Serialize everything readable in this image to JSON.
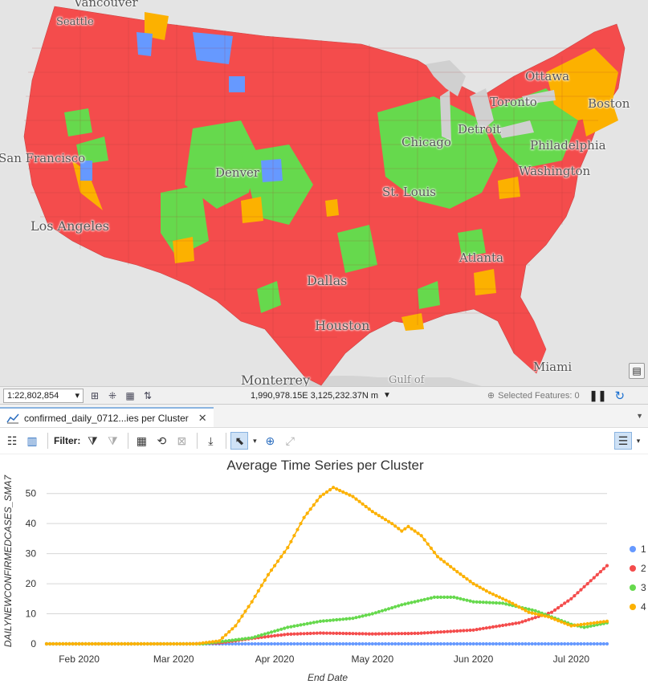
{
  "map": {
    "labels": {
      "vancouver": "Vancouver",
      "seattle": "Seattle",
      "ottawa": "Ottawa",
      "toronto": "Toronto",
      "boston": "Boston",
      "detroit": "Detroit",
      "chicago": "Chicago",
      "philadelphia": "Philadelphia",
      "washington": "Washington",
      "san_francisco": "San Francisco",
      "denver": "Denver",
      "st_louis": "St. Louis",
      "los_angeles": "Los Angeles",
      "atlanta": "Atlanta",
      "dallas": "Dallas",
      "houston": "Houston",
      "monterrey": "Monterrey",
      "gulf": "Gulf of",
      "miami": "Miami"
    },
    "colors": {
      "cluster1": "#6699ff",
      "cluster2": "#f44c4c",
      "cluster3": "#66d94d",
      "cluster4": "#fcb100",
      "basemap": "#e4e4e4"
    }
  },
  "statusbar": {
    "scale": "1:22,802,854",
    "coordinates": "1,990,978.15E 3,125,232.37N m",
    "selected_features": "Selected Features: 0"
  },
  "tab": {
    "title": "confirmed_daily_0712...ies per Cluster",
    "close": "✕"
  },
  "toolbar": {
    "filter_label": "Filter:",
    "icons": [
      "chart-properties-icon",
      "filter-extent-icon",
      "filter-selection-icon",
      "table-icon",
      "sync-icon",
      "clear-icon",
      "export-icon",
      "select-icon",
      "zoom-icon",
      "full-extent-icon",
      "legend-icon"
    ]
  },
  "chart_data": {
    "type": "line",
    "title": "Average Time Series per Cluster",
    "xlabel": "End Date",
    "ylabel": "DAILYNEWCONFIRMEDCASES_SMA7",
    "ylim": [
      0,
      55
    ],
    "yticks": [
      0,
      10,
      20,
      30,
      40,
      50
    ],
    "xticks": [
      "Feb 2020",
      "Mar 2020",
      "Apr 2020",
      "May 2020",
      "Jun 2020",
      "Jul 2020"
    ],
    "x_range": [
      "2020-01-22",
      "2020-07-12"
    ],
    "grid": true,
    "legend": "right",
    "series": [
      {
        "name": "1",
        "color": "#6699ff",
        "points": [
          [
            "2020-01-22",
            0
          ],
          [
            "2020-07-12",
            0
          ]
        ]
      },
      {
        "name": "2",
        "color": "#f44c4c",
        "points": [
          [
            "2020-01-22",
            0
          ],
          [
            "2020-03-05",
            0
          ],
          [
            "2020-03-15",
            0.3
          ],
          [
            "2020-03-25",
            1.8
          ],
          [
            "2020-04-05",
            3.2
          ],
          [
            "2020-04-15",
            3.6
          ],
          [
            "2020-05-01",
            3.3
          ],
          [
            "2020-05-15",
            3.5
          ],
          [
            "2020-06-01",
            4.6
          ],
          [
            "2020-06-15",
            7
          ],
          [
            "2020-06-25",
            10.5
          ],
          [
            "2020-07-01",
            15
          ],
          [
            "2020-07-06",
            20
          ],
          [
            "2020-07-12",
            26
          ]
        ]
      },
      {
        "name": "3",
        "color": "#66d94d",
        "points": [
          [
            "2020-01-22",
            0
          ],
          [
            "2020-03-10",
            0
          ],
          [
            "2020-03-25",
            2
          ],
          [
            "2020-04-05",
            5.5
          ],
          [
            "2020-04-15",
            7.5
          ],
          [
            "2020-04-25",
            8.5
          ],
          [
            "2020-05-01",
            10
          ],
          [
            "2020-05-10",
            13
          ],
          [
            "2020-05-20",
            15.5
          ],
          [
            "2020-05-26",
            15.5
          ],
          [
            "2020-06-01",
            14
          ],
          [
            "2020-06-10",
            13.5
          ],
          [
            "2020-06-20",
            11
          ],
          [
            "2020-07-01",
            6.5
          ],
          [
            "2020-07-05",
            5.5
          ],
          [
            "2020-07-12",
            7
          ]
        ]
      },
      {
        "name": "4",
        "color": "#fcb100",
        "points": [
          [
            "2020-01-22",
            0
          ],
          [
            "2020-03-08",
            0
          ],
          [
            "2020-03-15",
            1
          ],
          [
            "2020-03-20",
            6
          ],
          [
            "2020-03-25",
            14
          ],
          [
            "2020-03-30",
            23
          ],
          [
            "2020-04-05",
            32
          ],
          [
            "2020-04-10",
            42
          ],
          [
            "2020-04-15",
            49
          ],
          [
            "2020-04-19",
            52
          ],
          [
            "2020-04-25",
            49
          ],
          [
            "2020-05-01",
            44
          ],
          [
            "2020-05-07",
            40
          ],
          [
            "2020-05-10",
            37.5
          ],
          [
            "2020-05-12",
            39
          ],
          [
            "2020-05-16",
            36
          ],
          [
            "2020-05-21",
            29
          ],
          [
            "2020-05-27",
            24
          ],
          [
            "2020-06-01",
            20
          ],
          [
            "2020-06-06",
            17
          ],
          [
            "2020-06-12",
            14
          ],
          [
            "2020-06-18",
            10.5
          ],
          [
            "2020-06-24",
            9
          ],
          [
            "2020-07-01",
            6
          ],
          [
            "2020-07-12",
            7.5
          ]
        ]
      }
    ]
  }
}
